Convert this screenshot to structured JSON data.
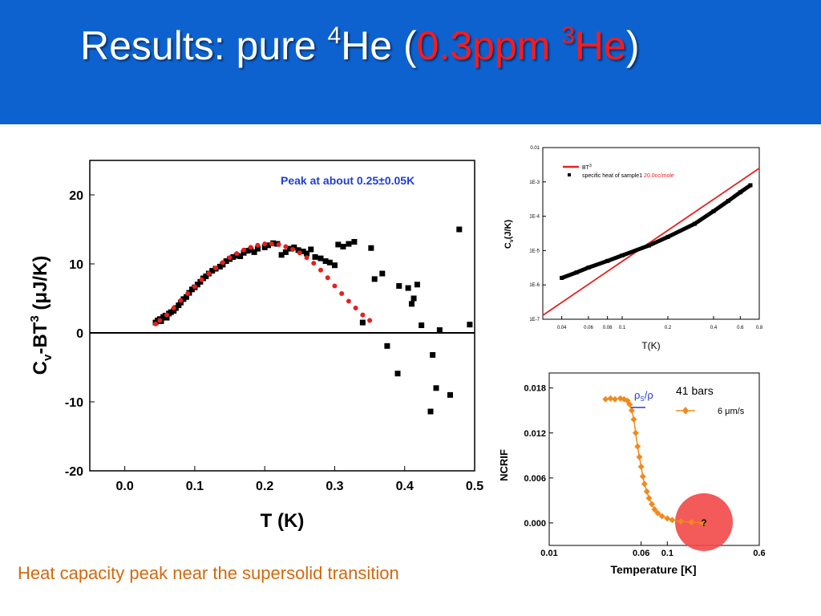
{
  "slide": {
    "title_prefix": "Results: pure ",
    "title_sup1": "4",
    "title_mid": "He (",
    "title_red_value": "0.3ppm ",
    "title_red_sup": "3",
    "title_red_he": "He",
    "title_close": ")",
    "caption": "Heat capacity peak near the supersolid transition",
    "colors": {
      "header": "#0d62cf",
      "title": "#ffffff",
      "title_accent": "#ff1a1a",
      "caption": "#d2690e"
    }
  },
  "chart_data": [
    {
      "type": "scatter",
      "title": "",
      "annotation": "Peak at about 0.25±0.05K",
      "xlabel": "T (K)",
      "ylabel_parts": {
        "c": "C",
        "sub": "v",
        "mid": "-BT",
        "sup": "3",
        "unit": " (μJ/K)"
      },
      "xlim": [
        -0.05,
        0.5
      ],
      "ylim": [
        -20,
        25
      ],
      "xticks": [
        0.0,
        0.1,
        0.2,
        0.3,
        0.4,
        0.5
      ],
      "xtick_labels": [
        "0.0",
        "0.1",
        "0.2",
        "0.3",
        "0.4",
        "0.5"
      ],
      "yticks": [
        -20,
        -10,
        0,
        10,
        20
      ],
      "ytick_labels": [
        "-20",
        "-10",
        "0",
        "10",
        "20"
      ],
      "zero_line": true,
      "series": [
        {
          "color": "#000000",
          "marker": "square",
          "points": [
            [
              0.044,
              1.5
            ],
            [
              0.047,
              1.8
            ],
            [
              0.05,
              2.0
            ],
            [
              0.052,
              1.7
            ],
            [
              0.055,
              2.3
            ],
            [
              0.058,
              2.5
            ],
            [
              0.06,
              2.2
            ],
            [
              0.063,
              2.8
            ],
            [
              0.066,
              3.0
            ],
            [
              0.07,
              3.2
            ],
            [
              0.073,
              3.6
            ],
            [
              0.077,
              4.0
            ],
            [
              0.08,
              4.4
            ],
            [
              0.084,
              4.9
            ],
            [
              0.088,
              5.2
            ],
            [
              0.092,
              5.8
            ],
            [
              0.096,
              6.3
            ],
            [
              0.1,
              6.6
            ],
            [
              0.104,
              7.0
            ],
            [
              0.108,
              7.4
            ],
            [
              0.112,
              7.9
            ],
            [
              0.116,
              8.2
            ],
            [
              0.12,
              8.6
            ],
            [
              0.125,
              9.0
            ],
            [
              0.13,
              9.3
            ],
            [
              0.136,
              9.6
            ],
            [
              0.14,
              9.9
            ],
            [
              0.145,
              10.4
            ],
            [
              0.15,
              10.7
            ],
            [
              0.155,
              11.0
            ],
            [
              0.16,
              11.2
            ],
            [
              0.165,
              11.1
            ],
            [
              0.17,
              11.6
            ],
            [
              0.175,
              11.9
            ],
            [
              0.18,
              12.0
            ],
            [
              0.185,
              11.7
            ],
            [
              0.19,
              12.2
            ],
            [
              0.2,
              12.4
            ],
            [
              0.205,
              12.7
            ],
            [
              0.212,
              13.0
            ],
            [
              0.218,
              12.9
            ],
            [
              0.224,
              11.3
            ],
            [
              0.23,
              11.7
            ],
            [
              0.236,
              12.2
            ],
            [
              0.242,
              12.4
            ],
            [
              0.248,
              12.0
            ],
            [
              0.255,
              11.8
            ],
            [
              0.26,
              11.5
            ],
            [
              0.266,
              12.1
            ],
            [
              0.272,
              11.0
            ],
            [
              0.28,
              10.8
            ],
            [
              0.287,
              10.4
            ],
            [
              0.293,
              10.2
            ],
            [
              0.3,
              9.8
            ],
            [
              0.305,
              12.8
            ],
            [
              0.312,
              12.5
            ],
            [
              0.32,
              12.9
            ],
            [
              0.328,
              13.2
            ],
            [
              0.34,
              1.5
            ],
            [
              0.352,
              12.3
            ],
            [
              0.357,
              7.8
            ],
            [
              0.368,
              8.6
            ],
            [
              0.375,
              -1.9
            ],
            [
              0.39,
              -5.9
            ],
            [
              0.392,
              6.8
            ],
            [
              0.405,
              6.5
            ],
            [
              0.41,
              4.2
            ],
            [
              0.413,
              5.0
            ],
            [
              0.418,
              7.0
            ],
            [
              0.424,
              1.1
            ],
            [
              0.437,
              -11.4
            ],
            [
              0.44,
              -3.2
            ],
            [
              0.445,
              -8.0
            ],
            [
              0.45,
              0.4
            ],
            [
              0.465,
              -9.0
            ],
            [
              0.478,
              15.0
            ],
            [
              0.493,
              1.2
            ]
          ]
        },
        {
          "color": "#e8201c",
          "marker": "dash",
          "points": [
            [
              0.044,
              1.3
            ],
            [
              0.05,
              1.8
            ],
            [
              0.06,
              2.6
            ],
            [
              0.07,
              3.6
            ],
            [
              0.08,
              4.7
            ],
            [
              0.09,
              5.7
            ],
            [
              0.1,
              6.7
            ],
            [
              0.11,
              7.7
            ],
            [
              0.12,
              8.6
            ],
            [
              0.13,
              9.4
            ],
            [
              0.14,
              10.2
            ],
            [
              0.15,
              10.9
            ],
            [
              0.16,
              11.5
            ],
            [
              0.17,
              12.0
            ],
            [
              0.18,
              12.4
            ],
            [
              0.19,
              12.7
            ],
            [
              0.2,
              12.9
            ],
            [
              0.21,
              12.9
            ],
            [
              0.22,
              12.8
            ],
            [
              0.23,
              12.5
            ],
            [
              0.24,
              12.1
            ],
            [
              0.25,
              11.6
            ],
            [
              0.26,
              10.9
            ],
            [
              0.27,
              10.1
            ],
            [
              0.28,
              9.1
            ],
            [
              0.29,
              8.0
            ],
            [
              0.3,
              6.8
            ],
            [
              0.31,
              5.7
            ],
            [
              0.32,
              4.6
            ],
            [
              0.33,
              3.6
            ],
            [
              0.34,
              2.6
            ],
            [
              0.35,
              1.8
            ]
          ]
        }
      ]
    },
    {
      "type": "line",
      "title": "",
      "xlabel": "T(K)",
      "ylabel_parts": {
        "c": "C",
        "sub": "v",
        "rest": "(J/K)"
      },
      "x_scale": "log",
      "y_scale": "log",
      "xlim": [
        0.03,
        0.8
      ],
      "ylim": [
        1e-07,
        0.01
      ],
      "xticks": [
        0.04,
        0.06,
        0.08,
        0.1,
        0.2,
        0.4,
        0.6,
        0.8
      ],
      "xtick_labels": [
        "0.04",
        "0.06",
        "0.08",
        "0.1",
        "0.2",
        "0.4",
        "0.6",
        "0.8"
      ],
      "yticks": [
        1e-07,
        1e-06,
        1e-05,
        0.0001,
        0.001,
        0.01
      ],
      "ytick_labels": [
        "1E-7",
        "1E-6",
        "1E-5",
        "1E-4",
        "1E-3",
        "0.01"
      ],
      "legend": {
        "placement": "top-left",
        "fit_label": "BT",
        "fit_label_sup": "3",
        "data_label": "specific heat of sample1 ",
        "data_label_red": "20.0cc/mole"
      },
      "series": [
        {
          "color": "#e8201c",
          "style": "line",
          "points": [
            [
              0.03,
              1.3e-07
            ],
            [
              0.8,
              0.0025
            ]
          ]
        },
        {
          "color": "#000000",
          "style": "markers",
          "points": [
            [
              0.04,
              1.6e-06
            ],
            [
              0.05,
              2.3e-06
            ],
            [
              0.06,
              3.2e-06
            ],
            [
              0.08,
              5e-06
            ],
            [
              0.1,
              7.2e-06
            ],
            [
              0.15,
              1.4e-05
            ],
            [
              0.2,
              2.5e-05
            ],
            [
              0.3,
              6e-05
            ],
            [
              0.4,
              0.00014
            ],
            [
              0.5,
              0.00028
            ],
            [
              0.6,
              0.0005
            ],
            [
              0.7,
              0.0008
            ]
          ]
        }
      ]
    },
    {
      "type": "line",
      "title": "",
      "xlabel": "Temperature [K]",
      "ylabel": "NCRIF",
      "x_scale": "log",
      "xlim": [
        0.01,
        0.6
      ],
      "ylim": [
        -0.003,
        0.02
      ],
      "xticks": [
        0.01,
        0.06,
        0.1,
        0.6
      ],
      "xtick_labels": [
        "0.01",
        "0.06",
        "0.1",
        "0.6"
      ],
      "yticks": [
        0.0,
        0.006,
        0.012,
        0.018
      ],
      "ytick_labels": [
        "0.000",
        "0.006",
        "0.012",
        "0.018"
      ],
      "legend": {
        "placement": "top-right",
        "title": "41 bars",
        "entry": "6 μm/s"
      },
      "annotations": {
        "rho_label": "ρ",
        "rho_sub": "S",
        "rho_tail": "/ρ",
        "question_mark": "?"
      },
      "series": [
        {
          "color": "#f08a1c",
          "marker": "diamond",
          "points": [
            [
              0.03,
              0.0165
            ],
            [
              0.033,
              0.0166
            ],
            [
              0.036,
              0.0165
            ],
            [
              0.04,
              0.0166
            ],
            [
              0.043,
              0.0165
            ],
            [
              0.046,
              0.0163
            ],
            [
              0.048,
              0.0158
            ],
            [
              0.05,
              0.015
            ],
            [
              0.052,
              0.0138
            ],
            [
              0.054,
              0.012
            ],
            [
              0.056,
              0.0102
            ],
            [
              0.058,
              0.0088
            ],
            [
              0.06,
              0.0075
            ],
            [
              0.062,
              0.0062
            ],
            [
              0.064,
              0.0052
            ],
            [
              0.067,
              0.0042
            ],
            [
              0.07,
              0.0033
            ],
            [
              0.074,
              0.0025
            ],
            [
              0.078,
              0.0018
            ],
            [
              0.083,
              0.0013
            ],
            [
              0.09,
              0.0009
            ],
            [
              0.1,
              0.0006
            ],
            [
              0.11,
              0.0004
            ],
            [
              0.13,
              0.0002
            ],
            [
              0.16,
              0.0001
            ],
            [
              0.2,
              0.0
            ]
          ]
        }
      ]
    }
  ]
}
